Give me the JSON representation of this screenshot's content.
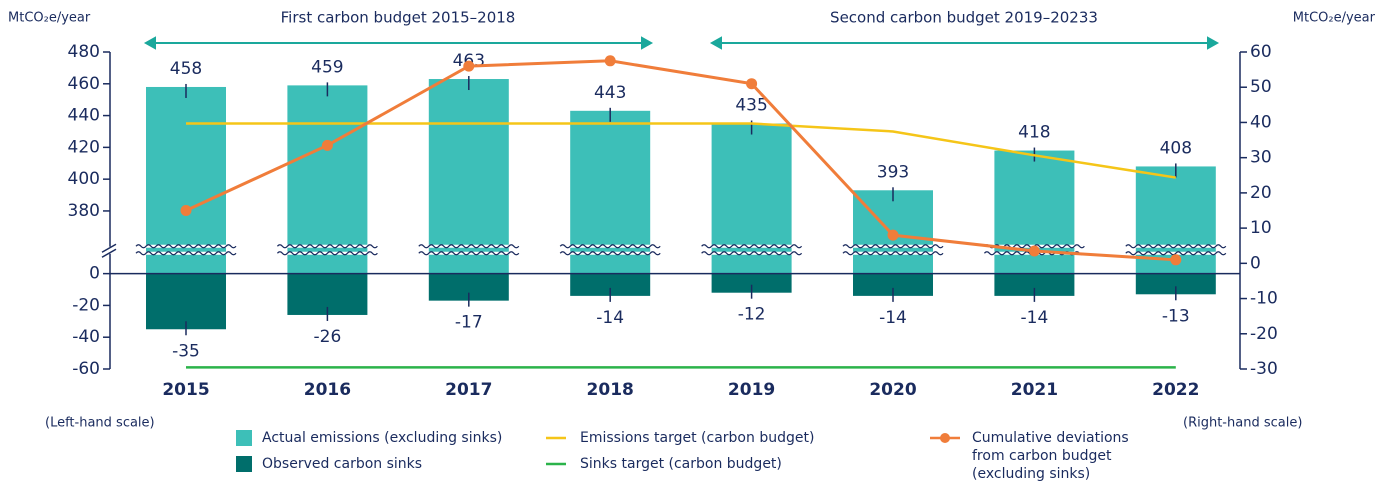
{
  "chart_data": {
    "type": "bar-line",
    "annotations": [
      "First carbon budget 2015–2018",
      "Second carbon budget 2019–20233"
    ],
    "y_label": "MtCO₂e/year",
    "y2_label": "MtCO₂e/year",
    "y_scale_note": "(Left-hand scale)",
    "y2_scale_note": "(Right-hand scale)",
    "categories": [
      "2015",
      "2016",
      "2017",
      "2018",
      "2019",
      "2020",
      "2021",
      "2022"
    ],
    "ylim": [
      -60,
      480
    ],
    "ybreak": [
      10,
      360
    ],
    "yticks": [
      -60,
      -40,
      -20,
      0,
      380,
      400,
      420,
      440,
      460,
      480
    ],
    "y2lim": [
      -30,
      60
    ],
    "y2ticks": [
      -30,
      -20,
      -10,
      0,
      10,
      20,
      30,
      40,
      50,
      60
    ],
    "series": [
      {
        "name": "Actual emissions (excluding sinks)",
        "kind": "bar",
        "color": "#3dbfb8",
        "values": [
          458,
          459,
          463,
          443,
          435,
          393,
          418,
          408
        ]
      },
      {
        "name": "Observed carbon sinks",
        "kind": "bar",
        "color": "#006e6b",
        "values": [
          -35,
          -26,
          -17,
          -14,
          -12,
          -14,
          -14,
          -13
        ]
      },
      {
        "name": "Emissions target (carbon budget)",
        "kind": "line",
        "color": "#f5c518",
        "values": [
          435,
          435,
          435,
          435,
          435,
          430,
          415,
          401
        ]
      },
      {
        "name": "Sinks target (carbon budget)",
        "kind": "line",
        "color": "#2bb34a",
        "values": [
          -59,
          -59,
          -59,
          -59,
          -59,
          -59,
          -59,
          -59
        ]
      },
      {
        "name": "Cumulative deviations from carbon budget (excluding sinks)",
        "kind": "line-markers",
        "axis": "y2",
        "color": "#f07d3a",
        "values": [
          15,
          33.5,
          56,
          57.5,
          51,
          8,
          3.5,
          1
        ]
      }
    ]
  }
}
